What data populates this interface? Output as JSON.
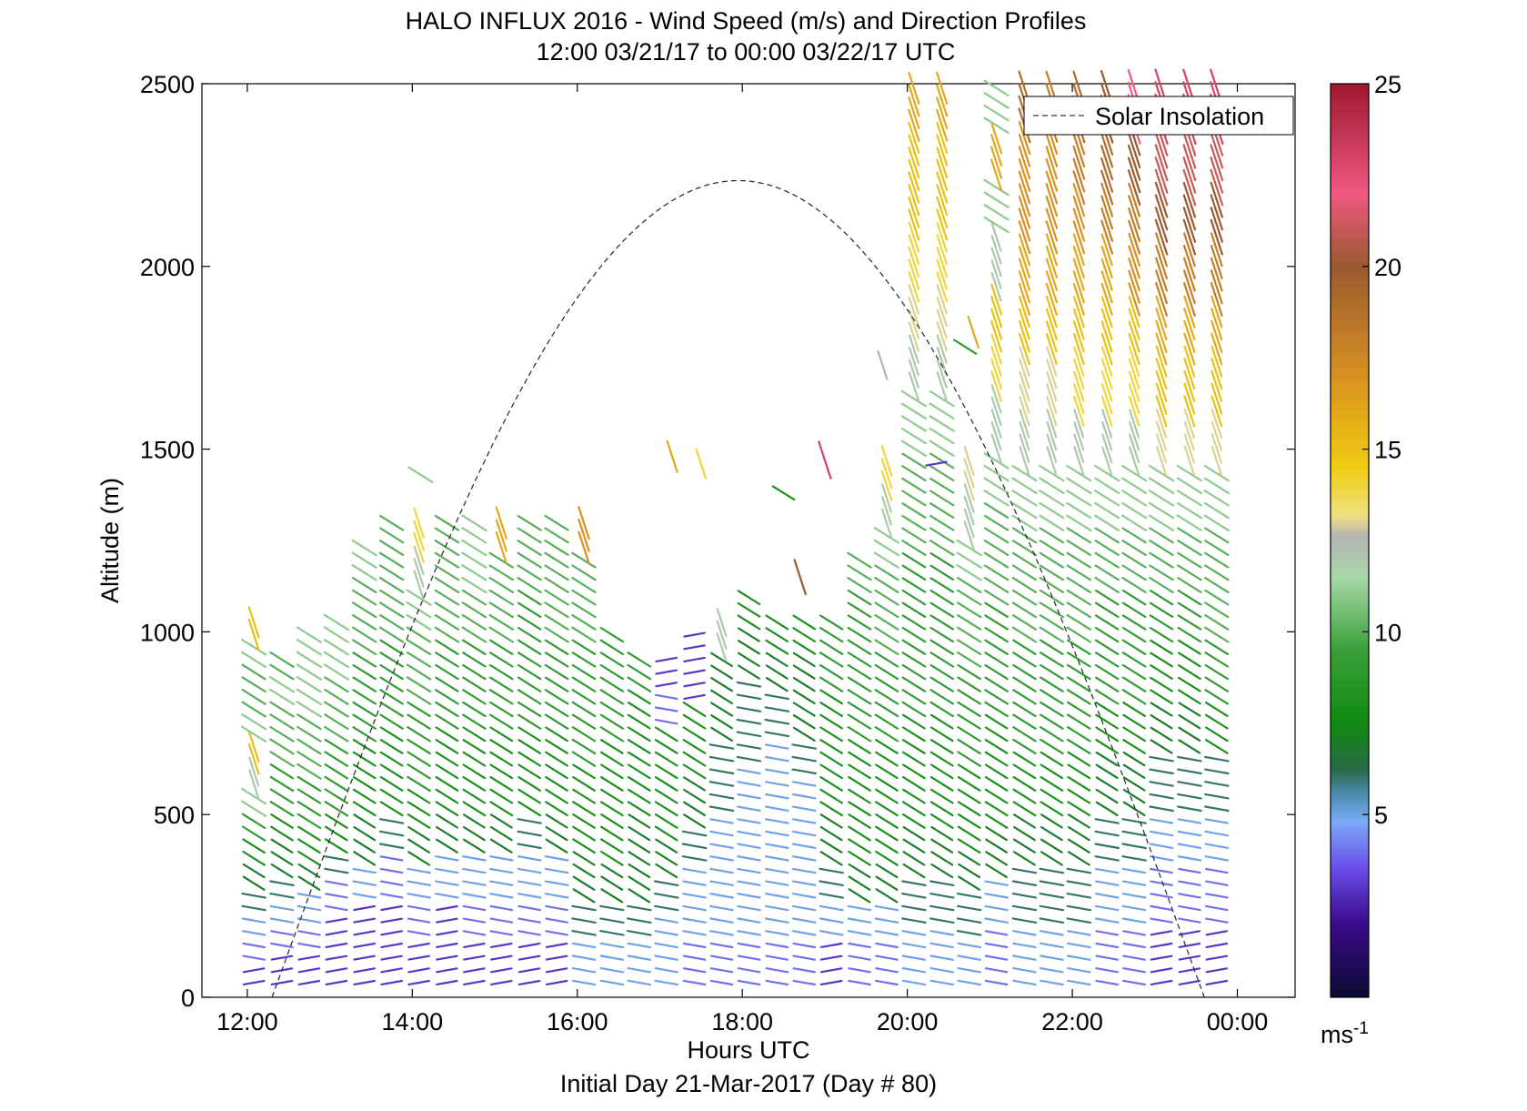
{
  "chart_data": {
    "type": "wind-barb-profile",
    "title": "HALO INFLUX 2016 - Wind Speed (m/s) and Direction Profiles",
    "subtitle": "12:00 03/21/17 to 00:00 03/22/17  UTC",
    "xlabel": "Hours UTC",
    "ylabel": "Altitude (m)",
    "footer": "Initial Day 21-Mar-2017 (Day # 80)",
    "xlim_hours": [
      11.45,
      24.7
    ],
    "ylim": [
      0,
      2500
    ],
    "x_ticks": [
      {
        "value": 12,
        "label": "12:00"
      },
      {
        "value": 14,
        "label": "14:00"
      },
      {
        "value": 16,
        "label": "16:00"
      },
      {
        "value": 18,
        "label": "18:00"
      },
      {
        "value": 20,
        "label": "20:00"
      },
      {
        "value": 22,
        "label": "22:00"
      },
      {
        "value": 24,
        "label": "00:00"
      }
    ],
    "y_ticks": [
      0,
      500,
      1000,
      1500,
      2000,
      2500
    ],
    "legend": {
      "label": "Solar Insolation",
      "placement": "top-right",
      "style": "dashed"
    },
    "colorbar": {
      "range": [
        0,
        25
      ],
      "ticks": [
        5,
        10,
        15,
        20,
        25
      ],
      "unit_label": "ms",
      "unit_superscript": "-1",
      "stops": [
        {
          "value": 0,
          "color": "#0a0a30"
        },
        {
          "value": 2,
          "color": "#3a0a8a"
        },
        {
          "value": 3.5,
          "color": "#6a4ae8"
        },
        {
          "value": 4.8,
          "color": "#7aaaf8"
        },
        {
          "value": 5.6,
          "color": "#4a8aaa"
        },
        {
          "value": 6.2,
          "color": "#2a6a4a"
        },
        {
          "value": 7.5,
          "color": "#108a10"
        },
        {
          "value": 9.5,
          "color": "#3aa03a"
        },
        {
          "value": 11.5,
          "color": "#a8d8a8"
        },
        {
          "value": 12.6,
          "color": "#b4b4b4"
        },
        {
          "value": 13.2,
          "color": "#f0e080"
        },
        {
          "value": 14.5,
          "color": "#f0cc10"
        },
        {
          "value": 17,
          "color": "#d89020"
        },
        {
          "value": 20,
          "color": "#9a5a30"
        },
        {
          "value": 22,
          "color": "#f05880"
        },
        {
          "value": 25,
          "color": "#a01830"
        }
      ]
    },
    "solar_insolation": {
      "start_hour": 12.3,
      "peak_hour": 17.95,
      "end_hour": 23.6,
      "peak_altitude": 2235
    },
    "profiles": [
      {
        "hour": 12.08,
        "top": 1050,
        "speeds": [
          3,
          4,
          5,
          6,
          7,
          8,
          9,
          11,
          12,
          15,
          11,
          10,
          10,
          11,
          15
        ]
      },
      {
        "hour": 12.42,
        "top": 950,
        "speeds": [
          3,
          4,
          5,
          6,
          7,
          8,
          9,
          9,
          10,
          10,
          11,
          10
        ]
      },
      {
        "hour": 12.75,
        "top": 1000,
        "speeds": [
          3,
          4,
          5,
          7,
          8,
          9,
          9,
          10,
          10,
          11,
          11,
          11
        ]
      },
      {
        "hour": 13.08,
        "top": 1050,
        "speeds": [
          3,
          3,
          4,
          6,
          8,
          9,
          9,
          10,
          10,
          11,
          11
        ]
      },
      {
        "hour": 13.42,
        "top": 1250,
        "speeds": [
          3,
          3,
          5,
          7,
          8,
          8,
          9,
          9,
          10,
          10,
          11
        ]
      },
      {
        "hour": 13.75,
        "top": 1300,
        "speeds": [
          3,
          3,
          4,
          6,
          8,
          8,
          9,
          9,
          10,
          10,
          10
        ]
      },
      {
        "hour": 14.08,
        "top": 1320,
        "speeds": [
          3,
          4,
          5,
          7,
          8,
          9,
          9,
          10,
          10,
          11,
          12,
          14
        ]
      },
      {
        "hour": 14.42,
        "top": 1330,
        "speeds": [
          3,
          3,
          5,
          7,
          8,
          8,
          9,
          9,
          10,
          10,
          10
        ]
      },
      {
        "hour": 14.75,
        "top": 1320,
        "speeds": [
          3,
          4,
          5,
          7,
          8,
          8,
          9,
          9,
          10,
          11,
          11
        ]
      },
      {
        "hour": 15.08,
        "top": 1330,
        "speeds": [
          3,
          4,
          5,
          7,
          8,
          8,
          9,
          9,
          10,
          10,
          16
        ]
      },
      {
        "hour": 15.42,
        "top": 1320,
        "speeds": [
          3,
          4,
          5,
          6,
          8,
          8,
          9,
          9,
          9,
          10,
          10
        ]
      },
      {
        "hour": 15.75,
        "top": 1320,
        "speeds": [
          3,
          4,
          5,
          7,
          8,
          8,
          9,
          9,
          10,
          10,
          10
        ]
      },
      {
        "hour": 16.08,
        "top": 1320,
        "speeds": [
          5,
          6,
          7,
          8,
          8,
          9,
          9,
          9,
          10,
          10,
          17
        ]
      },
      {
        "hour": 16.42,
        "top": 1000,
        "speeds": [
          5,
          6,
          7,
          8,
          8,
          8,
          9,
          9,
          9
        ]
      },
      {
        "hour": 16.75,
        "top": 950,
        "speeds": [
          5,
          6,
          7,
          7,
          8,
          8,
          8,
          9
        ]
      },
      {
        "hour": 17.08,
        "top": 950,
        "speeds": [
          5,
          5,
          6,
          7,
          8,
          8,
          8,
          4,
          3
        ]
      },
      {
        "hour": 17.42,
        "top": 1000,
        "speeds": [
          4,
          5,
          5,
          6,
          7,
          8,
          8,
          3,
          3
        ]
      },
      {
        "hour": 17.75,
        "top": 1050,
        "speeds": [
          4,
          5,
          5,
          5,
          6,
          6,
          7,
          7,
          12
        ]
      },
      {
        "hour": 18.08,
        "top": 1100,
        "speeds": [
          4,
          5,
          5,
          5,
          5,
          6,
          6,
          7,
          8
        ]
      },
      {
        "hour": 18.42,
        "top": 1050,
        "speeds": [
          4,
          5,
          5,
          5,
          5,
          5,
          6,
          7,
          8
        ]
      },
      {
        "hour": 18.75,
        "top": 1050,
        "speeds": [
          4,
          5,
          5,
          5,
          5,
          6,
          7,
          7,
          8
        ]
      },
      {
        "hour": 19.08,
        "top": 1050,
        "speeds": [
          3,
          5,
          6,
          7,
          8,
          8,
          8,
          9,
          9
        ]
      },
      {
        "hour": 19.42,
        "top": 1200,
        "speeds": [
          4,
          5,
          7,
          8,
          8,
          8,
          9,
          9,
          9,
          9,
          10
        ]
      },
      {
        "hour": 19.75,
        "top": 1500,
        "speeds": [
          4,
          5,
          7,
          8,
          8,
          8,
          9,
          9,
          10,
          10,
          11,
          12,
          14
        ]
      },
      {
        "hour": 20.08,
        "top": 2500,
        "speeds": [
          5,
          6,
          7,
          8,
          8,
          9,
          9,
          9,
          10,
          10,
          11,
          12,
          13,
          14,
          15,
          15,
          16
        ]
      },
      {
        "hour": 20.42,
        "top": 2500,
        "speeds": [
          5,
          6,
          7,
          8,
          8,
          9,
          9,
          9,
          10,
          10,
          11,
          12,
          13,
          14,
          15,
          15,
          16
        ]
      },
      {
        "hour": 20.75,
        "top": 1500,
        "speeds": [
          5,
          6,
          7,
          8,
          8,
          9,
          9,
          10,
          10,
          11,
          12,
          13
        ]
      },
      {
        "hour": 21.08,
        "top": 2500,
        "speeds": [
          4,
          5,
          7,
          8,
          8,
          9,
          9,
          10,
          10,
          11,
          12,
          14,
          15,
          12,
          11,
          16,
          11
        ]
      },
      {
        "hour": 21.42,
        "top": 2500,
        "speeds": [
          5,
          6,
          7,
          8,
          9,
          9,
          10,
          10,
          11,
          12,
          13,
          15,
          16,
          17,
          17,
          19
        ]
      },
      {
        "hour": 21.75,
        "top": 2500,
        "speeds": [
          5,
          6,
          7,
          8,
          9,
          9,
          10,
          10,
          11,
          12,
          13,
          15,
          16,
          17,
          17,
          18
        ]
      },
      {
        "hour": 22.08,
        "top": 2500,
        "speeds": [
          5,
          6,
          7,
          8,
          9,
          9,
          10,
          10,
          11,
          12,
          14,
          15,
          16,
          17,
          18,
          19
        ]
      },
      {
        "hour": 22.42,
        "top": 2500,
        "speeds": [
          4,
          5,
          6,
          7,
          8,
          9,
          9,
          10,
          11,
          12,
          14,
          15,
          16,
          18,
          19,
          20
        ]
      },
      {
        "hour": 22.75,
        "top": 2500,
        "speeds": [
          4,
          5,
          6,
          7,
          8,
          9,
          9,
          10,
          11,
          12,
          14,
          15,
          17,
          18,
          20,
          22
        ]
      },
      {
        "hour": 23.08,
        "top": 2500,
        "speeds": [
          3,
          4,
          5,
          6,
          7,
          8,
          9,
          10,
          11,
          13,
          15,
          16,
          18,
          20,
          21,
          23
        ]
      },
      {
        "hour": 23.42,
        "top": 2500,
        "speeds": [
          3,
          4,
          5,
          6,
          7,
          8,
          9,
          10,
          11,
          13,
          15,
          16,
          18,
          20,
          21,
          23
        ]
      },
      {
        "hour": 23.75,
        "top": 2500,
        "speeds": [
          3,
          4,
          5,
          6,
          8,
          9,
          10,
          10,
          11,
          13,
          15,
          16,
          18,
          20,
          21,
          23
        ]
      }
    ],
    "isolated_barbs": [
      {
        "hour": 14.1,
        "altitude": 1430,
        "speed": 11
      },
      {
        "hour": 17.15,
        "altitude": 1480,
        "speed": 16
      },
      {
        "hour": 17.5,
        "altitude": 1460,
        "speed": 14
      },
      {
        "hour": 18.5,
        "altitude": 1380,
        "speed": 8
      },
      {
        "hour": 19.0,
        "altitude": 1470,
        "speed": 23
      },
      {
        "hour": 18.7,
        "altitude": 1150,
        "speed": 20
      },
      {
        "hour": 19.7,
        "altitude": 1730,
        "speed": 12.6
      },
      {
        "hour": 20.35,
        "altitude": 1460,
        "speed": 3
      },
      {
        "hour": 20.7,
        "altitude": 1780,
        "speed": 9
      },
      {
        "hour": 20.8,
        "altitude": 1820,
        "speed": 16
      }
    ]
  }
}
